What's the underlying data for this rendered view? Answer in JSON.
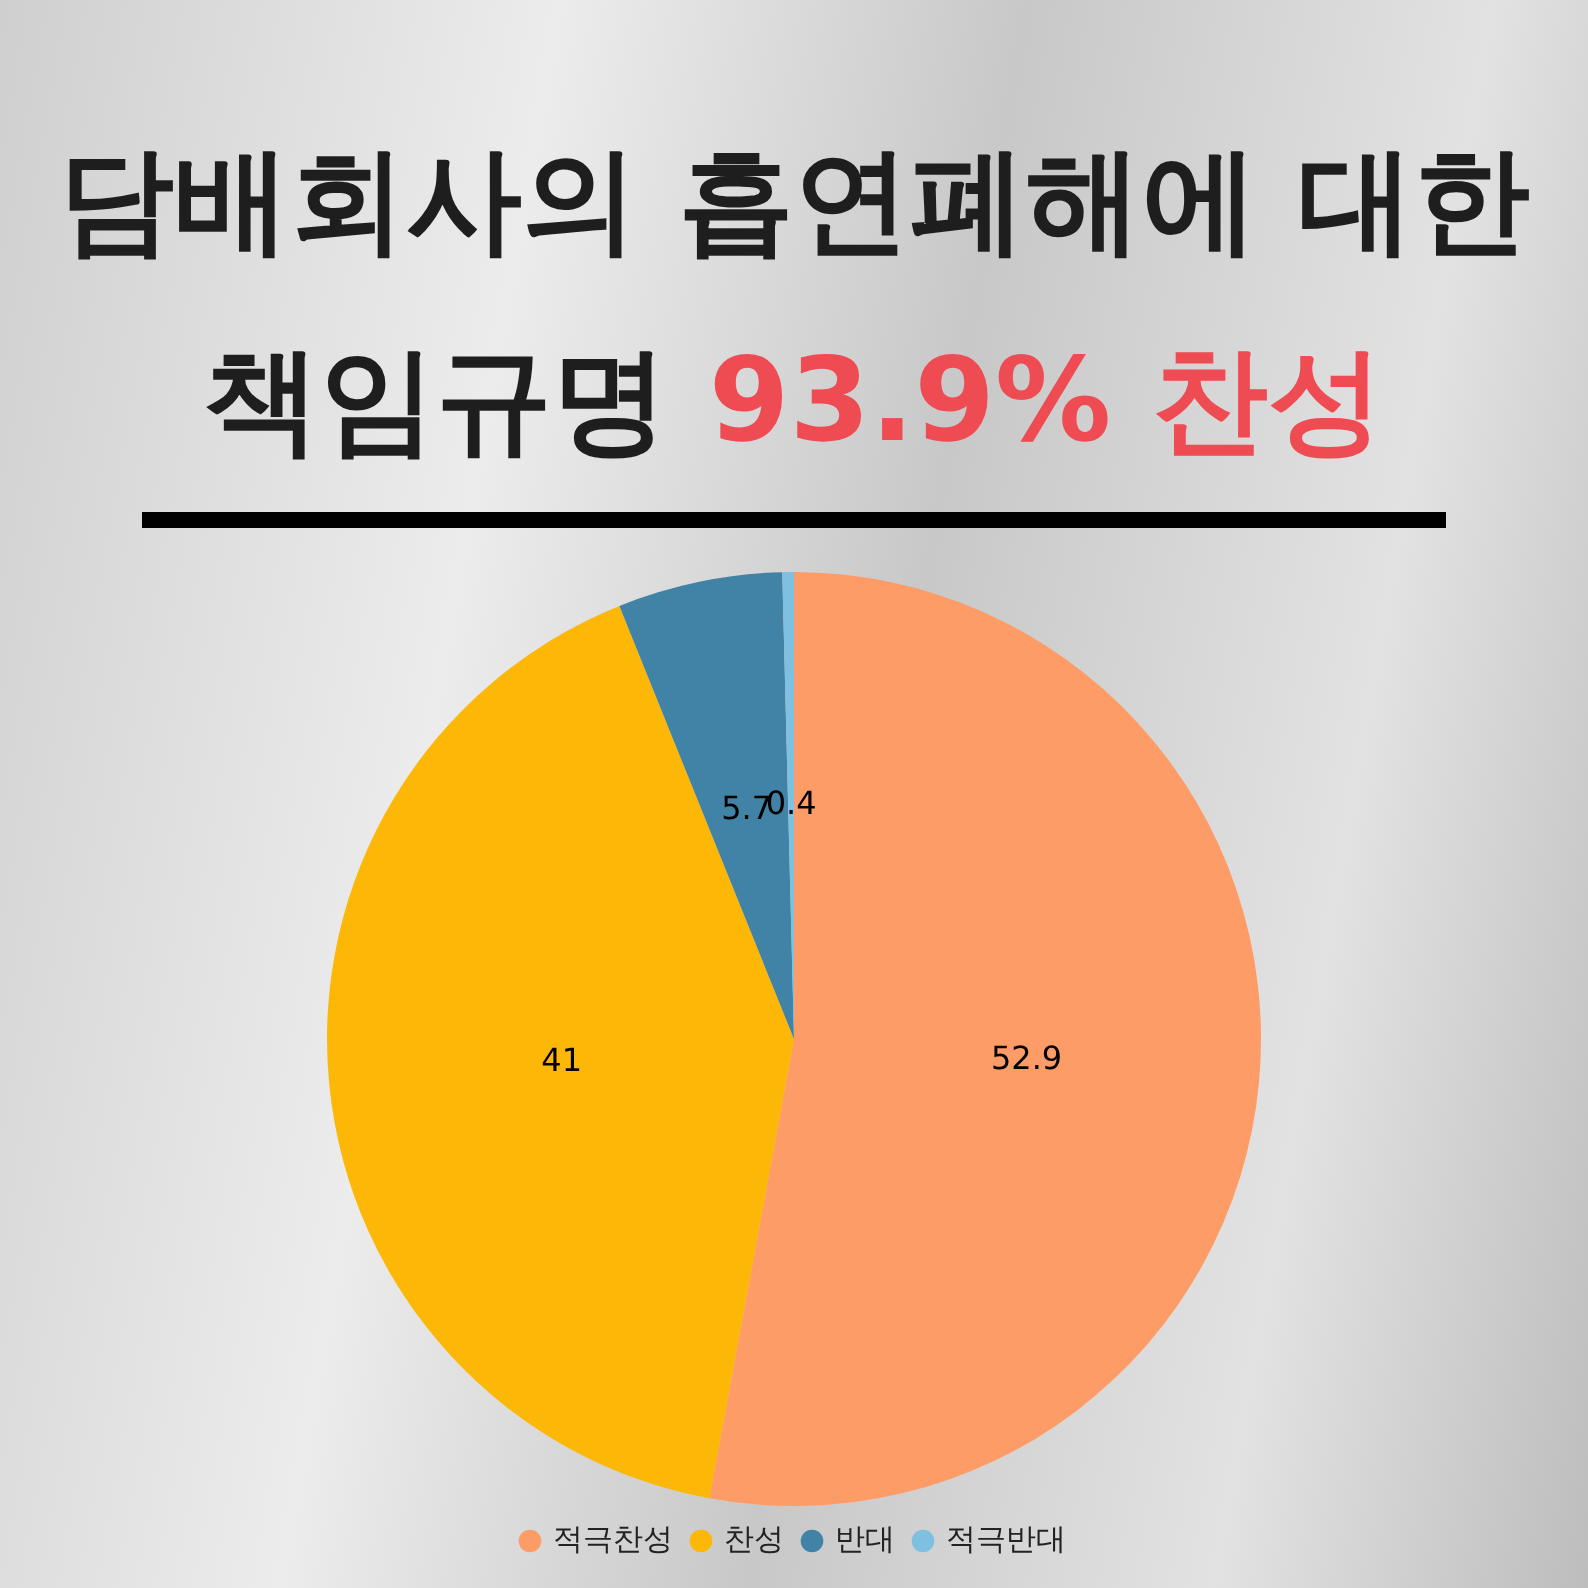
{
  "chart_data": {
    "type": "pie",
    "title": "담배회사의 흡연폐해에 대한\n책임규명",
    "subtitle": "93.9% 찬성",
    "categories": [
      "적극찬성",
      "찬성",
      "반대",
      "적극반대"
    ],
    "values": [
      52.9,
      41,
      5.7,
      0.4
    ],
    "colors": [
      "#fd9c66",
      "#fdb707",
      "#4083a6",
      "#7fbfe0"
    ],
    "data_labels": true,
    "legend": "bottom"
  }
}
